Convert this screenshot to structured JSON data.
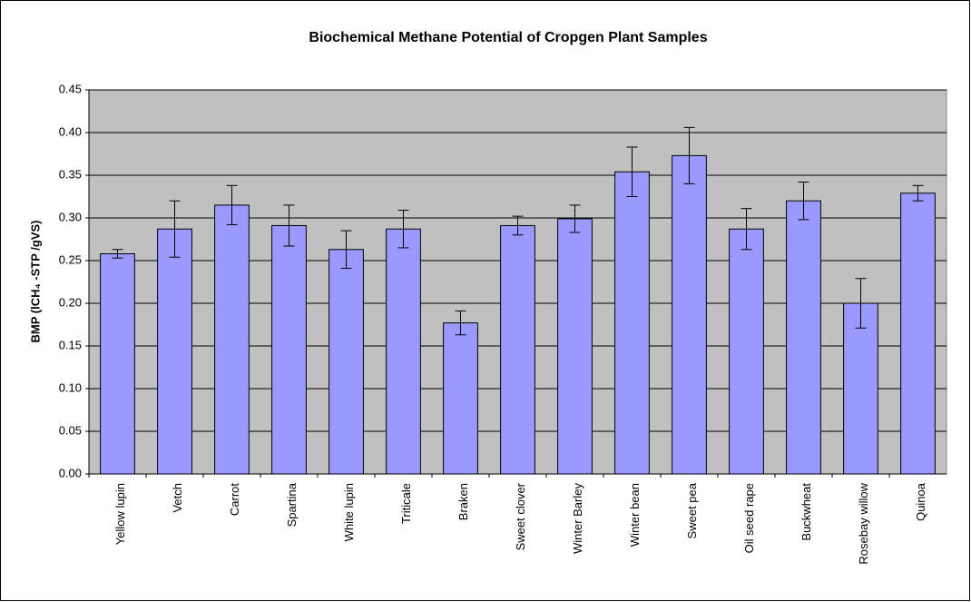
{
  "chart_data": {
    "type": "bar",
    "title": "Biochemical Methane Potential of Cropgen Plant Samples",
    "y_label": "BMP   (lCH₄ -STP /gVS)",
    "categories": [
      "Yellow lupin",
      "Vetch",
      "Carrot",
      "Spartina",
      "White lupin",
      "Triticale",
      "Braken",
      "Sweet clover",
      "Winter Barley",
      "Winter bean",
      "Sweet pea",
      "Oil seed rape",
      "Buckwheat",
      "Rosebay willow",
      "Quinoa"
    ],
    "values": [
      0.258,
      0.287,
      0.315,
      0.291,
      0.263,
      0.287,
      0.177,
      0.291,
      0.299,
      0.354,
      0.373,
      0.287,
      0.32,
      0.2,
      0.329
    ],
    "errors": [
      0.005,
      0.033,
      0.023,
      0.024,
      0.022,
      0.022,
      0.014,
      0.011,
      0.016,
      0.029,
      0.033,
      0.024,
      0.022,
      0.029,
      0.009
    ],
    "color": "#9999ff",
    "ylim": [
      0,
      0.45
    ],
    "yticks": [
      {
        "value": 0,
        "label": "0.00"
      },
      {
        "value": 0.05,
        "label": "0.05"
      },
      {
        "value": 0.1,
        "label": "0.10"
      },
      {
        "value": 0.15,
        "label": "0.15"
      },
      {
        "value": 0.2,
        "label": "0.20"
      },
      {
        "value": 0.25,
        "label": "0.25"
      },
      {
        "value": 0.3,
        "label": "0.30"
      },
      {
        "value": 0.35,
        "label": "0.35"
      },
      {
        "value": 0.4,
        "label": "0.40"
      },
      {
        "value": 0.45,
        "label": "0.45"
      }
    ],
    "grid": true
  }
}
